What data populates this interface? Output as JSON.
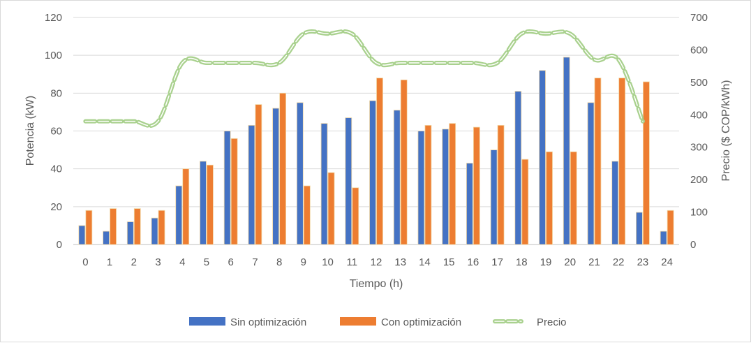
{
  "chart_data": {
    "type": "bar",
    "categories": [
      "0",
      "1",
      "2",
      "3",
      "4",
      "5",
      "6",
      "7",
      "8",
      "9",
      "10",
      "11",
      "12",
      "13",
      "14",
      "15",
      "16",
      "17",
      "18",
      "19",
      "20",
      "21",
      "22",
      "23",
      "24"
    ],
    "series": [
      {
        "name": "Sin optimización",
        "type": "bar",
        "axis": "left",
        "color": "#4472C4",
        "values": [
          10,
          7,
          12,
          14,
          31,
          44,
          60,
          63,
          72,
          75,
          64,
          67,
          76,
          71,
          60,
          61,
          43,
          50,
          81,
          92,
          99,
          75,
          44,
          17,
          7
        ]
      },
      {
        "name": "Con optimización",
        "type": "bar",
        "axis": "left",
        "color": "#ED7D31",
        "values": [
          18,
          19,
          19,
          18,
          40,
          42,
          56,
          74,
          80,
          31,
          38,
          30,
          88,
          87,
          63,
          64,
          62,
          63,
          45,
          49,
          49,
          88,
          88,
          86,
          18
        ]
      },
      {
        "name": "Precio",
        "type": "line",
        "axis": "right",
        "color": "#70AD47",
        "values": [
          380,
          380,
          380,
          380,
          560,
          560,
          560,
          560,
          560,
          650,
          650,
          650,
          560,
          560,
          560,
          560,
          560,
          560,
          650,
          650,
          650,
          570,
          570,
          380,
          null
        ]
      }
    ],
    "xlabel": "Tiempo (h)",
    "ylabel": "Potencia (kW)",
    "y2label": "Precio ($ COP/kWh)",
    "ylim": [
      0,
      120
    ],
    "y2lim": [
      0,
      700
    ],
    "yticks": [
      "0",
      "20",
      "40",
      "60",
      "80",
      "100",
      "120"
    ],
    "y2ticks": [
      "0",
      "100",
      "200",
      "300",
      "400",
      "500",
      "600",
      "700"
    ],
    "grid": true,
    "legend_position": "bottom"
  }
}
